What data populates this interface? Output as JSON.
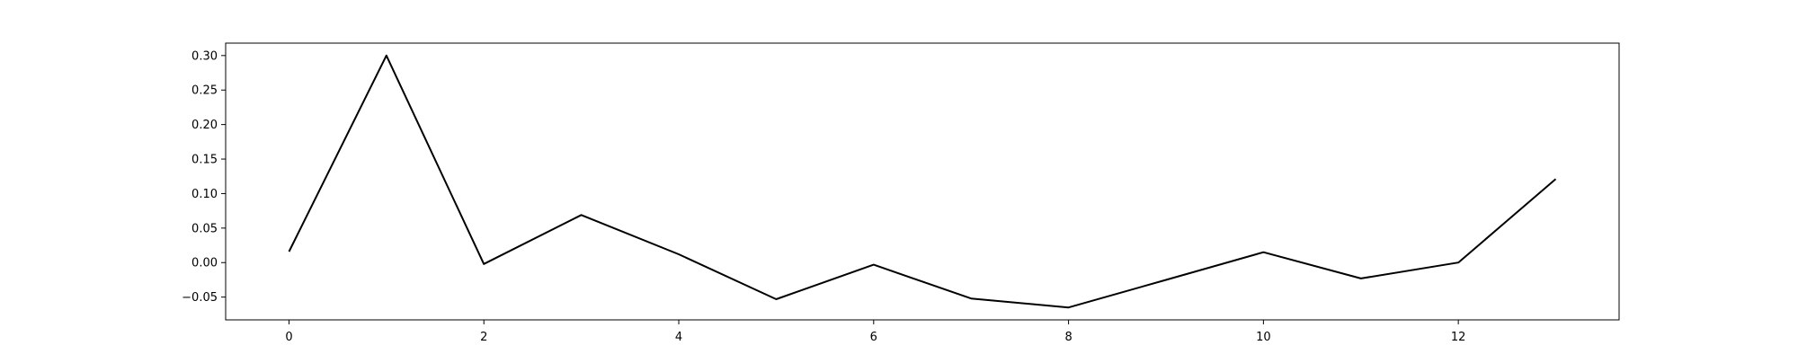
{
  "chart_data": {
    "type": "line",
    "title": "",
    "xlabel": "",
    "ylabel": "",
    "x": [
      0,
      1,
      2,
      3,
      4,
      5,
      6,
      7,
      8,
      9,
      10,
      11,
      12,
      13
    ],
    "series": [
      {
        "values": [
          0.016,
          0.3,
          -0.002,
          0.069,
          0.012,
          -0.053,
          -0.003,
          -0.052,
          -0.065,
          -0.025,
          0.015,
          -0.023,
          0.0,
          0.121
        ],
        "color": "#000000"
      }
    ],
    "xlim": [
      -0.65,
      13.65
    ],
    "ylim": [
      -0.083,
      0.318
    ],
    "xticks": [
      0,
      2,
      4,
      6,
      8,
      10,
      12
    ],
    "xtick_labels": [
      "0",
      "2",
      "4",
      "6",
      "8",
      "10",
      "12"
    ],
    "yticks": [
      -0.05,
      0.0,
      0.05,
      0.1,
      0.15,
      0.2,
      0.25,
      0.3
    ],
    "ytick_labels": [
      "−0.05",
      "0.00",
      "0.05",
      "0.10",
      "0.15",
      "0.20",
      "0.25",
      "0.30"
    ],
    "grid": false,
    "legend": "none"
  }
}
